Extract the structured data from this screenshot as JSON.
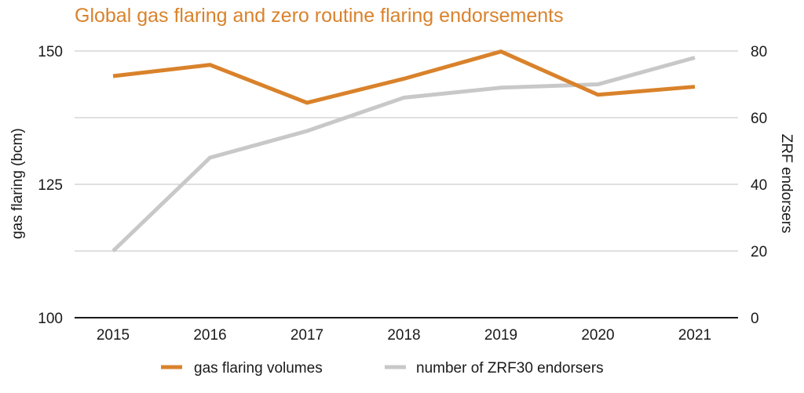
{
  "chart_data": {
    "type": "line",
    "title": "Global gas flaring and zero routine flaring endorsements",
    "x": [
      "2015",
      "2016",
      "2017",
      "2018",
      "2019",
      "2020",
      "2021"
    ],
    "ylabel_left": "gas flaring (bcm)",
    "ylabel_right": "ZRF endorsers",
    "ylim_left": [
      100,
      150
    ],
    "yticks_left": [
      "100",
      "125",
      "150"
    ],
    "ylim_right": [
      0,
      80
    ],
    "yticks_right": [
      "0",
      "20",
      "40",
      "60",
      "80"
    ],
    "grid": true,
    "legend_position": "bottom",
    "series": [
      {
        "name": "gas flaring volumes",
        "axis": "left",
        "color": "#d9822b",
        "values": [
          145.3,
          147.4,
          140.3,
          144.8,
          149.9,
          141.8,
          143.3
        ]
      },
      {
        "name": "number of ZRF30 endorsers",
        "axis": "right",
        "color": "#c8c8c8",
        "values": [
          20,
          48,
          56,
          66,
          69,
          70,
          78
        ]
      }
    ]
  },
  "colors": {
    "grid": "#d6d6d6",
    "axis": "#1a1a1a"
  }
}
